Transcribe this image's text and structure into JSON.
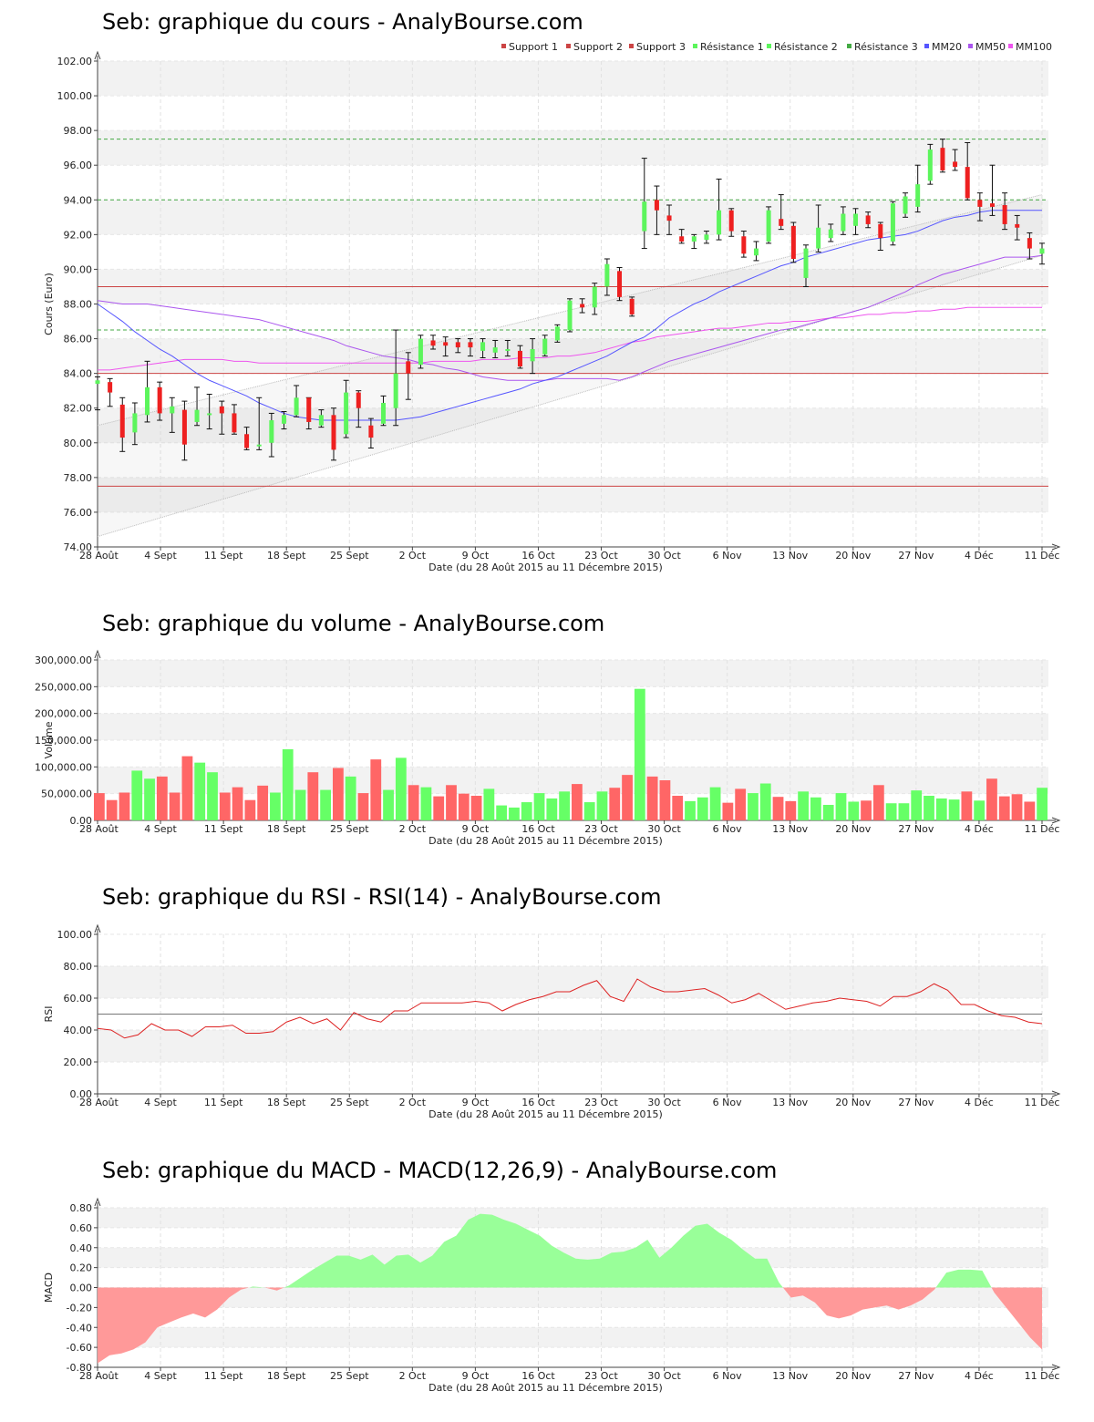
{
  "colors": {
    "up": "#5cf55c",
    "down": "#ee2020",
    "vol_up": "#66ff66",
    "vol_down": "#ff6666",
    "mm20": "#5555ff",
    "mm50": "#aa55ee",
    "mm100": "#ee55ee",
    "support": "#cc4444",
    "resistance": "#44aa44",
    "rsi": "#dd2222",
    "macd_pos": "#99ff99",
    "macd_neg": "#ff9999"
  },
  "x_ticks": [
    "28 Août",
    "4 Sept",
    "11 Sept",
    "18 Sept",
    "25 Sept",
    "2 Oct",
    "9 Oct",
    "16 Oct",
    "23 Oct",
    "30 Oct",
    "6 Nov",
    "13 Nov",
    "20 Nov",
    "27 Nov",
    "4 Déc",
    "11 Déc"
  ],
  "x_label": "Date (du 28 Août 2015 au 11 Décembre 2015)",
  "chart_data": [
    {
      "type": "candlestick",
      "title": "Seb: graphique du cours - AnalyBourse.com",
      "ylabel": "Cours (Euro)",
      "ylim": [
        74,
        102
      ],
      "yticks": [
        "74.00",
        "76.00",
        "78.00",
        "80.00",
        "82.00",
        "84.00",
        "86.00",
        "88.00",
        "90.00",
        "92.00",
        "94.00",
        "96.00",
        "98.00",
        "100.00",
        "102.00"
      ],
      "legend": [
        "Support 1",
        "Support 2",
        "Support 3",
        "Résistance 1",
        "Résistance 2",
        "Résistance 3",
        "MM20",
        "MM50",
        "MM100"
      ],
      "support_levels": [
        77.5,
        84.0,
        89.0
      ],
      "resistance_levels": [
        86.5,
        94.0,
        97.5
      ],
      "candles": [
        {
          "open": 83.4,
          "close": 83.6,
          "high": 83.8,
          "low": 81.9
        },
        {
          "open": 83.5,
          "close": 82.9,
          "high": 83.7,
          "low": 82.1
        },
        {
          "open": 82.2,
          "close": 80.3,
          "high": 82.6,
          "low": 79.5
        },
        {
          "open": 80.6,
          "close": 81.7,
          "high": 82.3,
          "low": 79.9
        },
        {
          "open": 81.6,
          "close": 83.2,
          "high": 84.7,
          "low": 81.2
        },
        {
          "open": 83.2,
          "close": 81.7,
          "high": 83.5,
          "low": 81.3
        },
        {
          "open": 81.7,
          "close": 82.1,
          "high": 82.6,
          "low": 80.6
        },
        {
          "open": 81.9,
          "close": 79.9,
          "high": 82.4,
          "low": 79.0
        },
        {
          "open": 81.2,
          "close": 81.9,
          "high": 83.2,
          "low": 81.0
        },
        {
          "open": 81.6,
          "close": 81.7,
          "high": 82.8,
          "low": 80.8
        },
        {
          "open": 82.1,
          "close": 81.7,
          "high": 82.4,
          "low": 80.5
        },
        {
          "open": 81.7,
          "close": 80.6,
          "high": 82.2,
          "low": 80.5
        },
        {
          "open": 80.5,
          "close": 79.7,
          "high": 80.9,
          "low": 79.6
        },
        {
          "open": 79.9,
          "close": 79.9,
          "high": 82.6,
          "low": 79.6
        },
        {
          "open": 80.0,
          "close": 81.3,
          "high": 81.7,
          "low": 79.2
        },
        {
          "open": 81.1,
          "close": 81.6,
          "high": 81.8,
          "low": 80.8
        },
        {
          "open": 81.6,
          "close": 82.6,
          "high": 83.3,
          "low": 81.5
        },
        {
          "open": 82.6,
          "close": 81.2,
          "high": 82.6,
          "low": 80.8
        },
        {
          "open": 81.0,
          "close": 81.6,
          "high": 81.9,
          "low": 80.9
        },
        {
          "open": 81.6,
          "close": 79.6,
          "high": 82.0,
          "low": 79.0
        },
        {
          "open": 80.5,
          "close": 82.9,
          "high": 83.6,
          "low": 80.3
        },
        {
          "open": 82.9,
          "close": 82.0,
          "high": 83.0,
          "low": 80.9
        },
        {
          "open": 81.0,
          "close": 80.3,
          "high": 81.4,
          "low": 79.7
        },
        {
          "open": 81.1,
          "close": 82.3,
          "high": 82.7,
          "low": 81.0
        },
        {
          "open": 82.0,
          "close": 84.0,
          "high": 86.5,
          "low": 81.0
        },
        {
          "open": 84.7,
          "close": 84.0,
          "high": 85.2,
          "low": 82.5
        },
        {
          "open": 84.5,
          "close": 86.0,
          "high": 86.2,
          "low": 84.3
        },
        {
          "open": 85.9,
          "close": 85.6,
          "high": 86.2,
          "low": 85.4
        },
        {
          "open": 85.8,
          "close": 85.6,
          "high": 86.1,
          "low": 85.0
        },
        {
          "open": 85.8,
          "close": 85.5,
          "high": 86.0,
          "low": 85.2
        },
        {
          "open": 85.8,
          "close": 85.5,
          "high": 86.0,
          "low": 85.0
        },
        {
          "open": 85.3,
          "close": 85.8,
          "high": 86.0,
          "low": 84.9
        },
        {
          "open": 85.2,
          "close": 85.5,
          "high": 85.9,
          "low": 84.9
        },
        {
          "open": 85.3,
          "close": 85.4,
          "high": 85.9,
          "low": 85.0
        },
        {
          "open": 85.3,
          "close": 84.4,
          "high": 85.6,
          "low": 84.3
        },
        {
          "open": 84.7,
          "close": 85.4,
          "high": 86.0,
          "low": 84.0
        },
        {
          "open": 85.1,
          "close": 86.0,
          "high": 86.2,
          "low": 85.0
        },
        {
          "open": 85.9,
          "close": 86.7,
          "high": 86.8,
          "low": 85.8
        },
        {
          "open": 86.5,
          "close": 88.2,
          "high": 88.3,
          "low": 86.4
        },
        {
          "open": 88.0,
          "close": 87.8,
          "high": 88.3,
          "low": 87.5
        },
        {
          "open": 87.8,
          "close": 89.0,
          "high": 89.2,
          "low": 87.4
        },
        {
          "open": 89.0,
          "close": 90.3,
          "high": 90.6,
          "low": 88.5
        },
        {
          "open": 89.9,
          "close": 88.4,
          "high": 90.1,
          "low": 88.2
        },
        {
          "open": 88.3,
          "close": 87.4,
          "high": 88.4,
          "low": 87.3
        },
        {
          "open": 92.2,
          "close": 93.9,
          "high": 96.4,
          "low": 91.2
        },
        {
          "open": 94.0,
          "close": 93.4,
          "high": 94.8,
          "low": 92.0
        },
        {
          "open": 93.1,
          "close": 92.8,
          "high": 93.7,
          "low": 92.0
        },
        {
          "open": 91.9,
          "close": 91.6,
          "high": 92.3,
          "low": 91.5
        },
        {
          "open": 91.6,
          "close": 91.9,
          "high": 92.0,
          "low": 91.2
        },
        {
          "open": 91.7,
          "close": 92.0,
          "high": 92.2,
          "low": 91.5
        },
        {
          "open": 92.0,
          "close": 93.4,
          "high": 95.2,
          "low": 91.7
        },
        {
          "open": 93.4,
          "close": 92.2,
          "high": 93.5,
          "low": 91.9
        },
        {
          "open": 91.9,
          "close": 90.9,
          "high": 92.2,
          "low": 90.7
        },
        {
          "open": 90.8,
          "close": 91.2,
          "high": 91.6,
          "low": 90.5
        },
        {
          "open": 91.6,
          "close": 93.4,
          "high": 93.6,
          "low": 91.5
        },
        {
          "open": 92.9,
          "close": 92.5,
          "high": 94.3,
          "low": 92.3
        },
        {
          "open": 92.5,
          "close": 90.6,
          "high": 92.7,
          "low": 90.4
        },
        {
          "open": 89.5,
          "close": 91.2,
          "high": 91.4,
          "low": 89.0
        },
        {
          "open": 91.2,
          "close": 92.4,
          "high": 93.7,
          "low": 91.0
        },
        {
          "open": 91.8,
          "close": 92.3,
          "high": 92.6,
          "low": 91.6
        },
        {
          "open": 92.2,
          "close": 93.2,
          "high": 93.6,
          "low": 92.0
        },
        {
          "open": 92.5,
          "close": 93.2,
          "high": 93.5,
          "low": 92.0
        },
        {
          "open": 93.1,
          "close": 92.6,
          "high": 93.3,
          "low": 92.4
        },
        {
          "open": 92.6,
          "close": 91.8,
          "high": 92.7,
          "low": 91.1
        },
        {
          "open": 91.6,
          "close": 93.8,
          "high": 93.9,
          "low": 91.4
        },
        {
          "open": 93.2,
          "close": 94.2,
          "high": 94.4,
          "low": 93.0
        },
        {
          "open": 93.6,
          "close": 94.9,
          "high": 96.0,
          "low": 93.3
        },
        {
          "open": 95.1,
          "close": 96.9,
          "high": 97.2,
          "low": 94.9
        },
        {
          "open": 97.0,
          "close": 95.7,
          "high": 97.5,
          "low": 95.6
        },
        {
          "open": 96.2,
          "close": 95.9,
          "high": 96.9,
          "low": 95.7
        },
        {
          "open": 95.9,
          "close": 94.1,
          "high": 97.3,
          "low": 94.0
        },
        {
          "open": 94.0,
          "close": 93.6,
          "high": 94.4,
          "low": 92.8
        },
        {
          "open": 93.8,
          "close": 93.6,
          "high": 96.0,
          "low": 93.1
        },
        {
          "open": 93.7,
          "close": 92.6,
          "high": 94.4,
          "low": 92.3
        },
        {
          "open": 92.6,
          "close": 92.4,
          "high": 93.1,
          "low": 91.7
        },
        {
          "open": 91.8,
          "close": 91.2,
          "high": 92.1,
          "low": 90.6
        },
        {
          "open": 90.9,
          "close": 91.2,
          "high": 91.5,
          "low": 90.3
        }
      ],
      "mm20": [
        88.0,
        87.5,
        87.0,
        86.4,
        85.9,
        85.4,
        85.0,
        84.5,
        84.0,
        83.6,
        83.3,
        83.0,
        82.7,
        82.3,
        82.0,
        81.7,
        81.5,
        81.4,
        81.3,
        81.3,
        81.3,
        81.3,
        81.3,
        81.3,
        81.3,
        81.4,
        81.5,
        81.7,
        81.9,
        82.1,
        82.3,
        82.5,
        82.7,
        82.9,
        83.1,
        83.4,
        83.6,
        83.8,
        84.1,
        84.4,
        84.7,
        85.0,
        85.4,
        85.8,
        86.1,
        86.6,
        87.2,
        87.6,
        88.0,
        88.3,
        88.7,
        89.0,
        89.3,
        89.6,
        89.9,
        90.2,
        90.4,
        90.7,
        90.9,
        91.1,
        91.3,
        91.5,
        91.7,
        91.8,
        91.9,
        92.0,
        92.2,
        92.5,
        92.8,
        93.0,
        93.1,
        93.3,
        93.4,
        93.4,
        93.4,
        93.4,
        93.4
      ],
      "mm50": [
        88.2,
        88.1,
        88.0,
        88.0,
        88.0,
        87.9,
        87.8,
        87.7,
        87.6,
        87.5,
        87.4,
        87.3,
        87.2,
        87.1,
        86.9,
        86.7,
        86.5,
        86.3,
        86.1,
        85.9,
        85.6,
        85.4,
        85.2,
        85.0,
        84.9,
        84.8,
        84.6,
        84.5,
        84.3,
        84.2,
        84.0,
        83.8,
        83.7,
        83.6,
        83.6,
        83.6,
        83.6,
        83.7,
        83.7,
        83.7,
        83.7,
        83.7,
        83.6,
        83.8,
        84.1,
        84.4,
        84.7,
        84.9,
        85.1,
        85.3,
        85.5,
        85.7,
        85.9,
        86.1,
        86.3,
        86.5,
        86.6,
        86.8,
        87.0,
        87.2,
        87.4,
        87.6,
        87.8,
        88.1,
        88.4,
        88.7,
        89.1,
        89.4,
        89.7,
        89.9,
        90.1,
        90.3,
        90.5,
        90.7,
        90.7,
        90.7,
        90.8
      ],
      "mm100": [
        84.2,
        84.2,
        84.3,
        84.4,
        84.5,
        84.6,
        84.7,
        84.8,
        84.8,
        84.8,
        84.8,
        84.7,
        84.7,
        84.6,
        84.6,
        84.6,
        84.6,
        84.6,
        84.6,
        84.6,
        84.6,
        84.6,
        84.6,
        84.6,
        84.6,
        84.6,
        84.6,
        84.7,
        84.7,
        84.7,
        84.7,
        84.8,
        84.8,
        84.8,
        84.9,
        84.9,
        84.9,
        85.0,
        85.0,
        85.1,
        85.2,
        85.4,
        85.6,
        85.8,
        85.9,
        86.1,
        86.2,
        86.3,
        86.4,
        86.5,
        86.6,
        86.6,
        86.7,
        86.8,
        86.9,
        86.9,
        87.0,
        87.0,
        87.1,
        87.2,
        87.2,
        87.3,
        87.4,
        87.4,
        87.5,
        87.5,
        87.6,
        87.6,
        87.7,
        87.7,
        87.8,
        87.8,
        87.8,
        87.8,
        87.8,
        87.8,
        87.8
      ]
    },
    {
      "type": "bar",
      "title": "Seb: graphique du volume - AnalyBourse.com",
      "ylabel": "Volume",
      "ylim": [
        0,
        300000
      ],
      "yticks": [
        "0.00",
        "50,000.00",
        "100,000.00",
        "150,000.00",
        "200,000.00",
        "250,000.00",
        "300,000.00"
      ],
      "values": [
        51000,
        38000,
        52000,
        93000,
        78000,
        82000,
        52000,
        120000,
        108000,
        90000,
        52000,
        62000,
        38000,
        65000,
        52000,
        133000,
        57000,
        90000,
        57000,
        98000,
        82000,
        51000,
        114000,
        57000,
        117000,
        66000,
        62000,
        45000,
        66000,
        50000,
        46000,
        59000,
        28000,
        24000,
        34000,
        51000,
        41000,
        54000,
        68000,
        34000,
        54000,
        61000,
        85000,
        246000,
        82000,
        75000,
        46000,
        36000,
        43000,
        62000,
        33000,
        59000,
        51000,
        69000,
        44000,
        36000,
        54000,
        43000,
        29000,
        51000,
        35000,
        37000,
        66000,
        32000,
        32000,
        56000,
        46000,
        41000,
        39000,
        54000,
        37000,
        78000,
        45000,
        49000,
        35000,
        61000
      ],
      "up": [
        false,
        false,
        false,
        true,
        true,
        false,
        false,
        false,
        true,
        true,
        false,
        false,
        false,
        false,
        true,
        true,
        true,
        false,
        true,
        false,
        true,
        false,
        false,
        true,
        true,
        false,
        true,
        false,
        false,
        false,
        false,
        true,
        true,
        true,
        true,
        true,
        true,
        true,
        false,
        true,
        true,
        false,
        false,
        true,
        false,
        false,
        false,
        true,
        true,
        true,
        false,
        false,
        true,
        true,
        false,
        false,
        true,
        true,
        true,
        true,
        true,
        false,
        false,
        true,
        true,
        true,
        true,
        true,
        true,
        false,
        true,
        false,
        false,
        false,
        false,
        true
      ]
    },
    {
      "type": "line",
      "title": "Seb: graphique du RSI - RSI(14) - AnalyBourse.com",
      "ylabel": "RSI",
      "ylim": [
        0,
        100
      ],
      "yticks": [
        "0.00",
        "20.00",
        "40.00",
        "60.00",
        "80.00",
        "100.00"
      ],
      "reference": 50,
      "values": [
        41,
        40,
        35,
        37,
        44,
        40,
        40,
        36,
        42,
        42,
        43,
        38,
        38,
        39,
        45,
        48,
        44,
        47,
        40,
        51,
        47,
        45,
        52,
        52,
        57,
        57,
        57,
        57,
        58,
        57,
        52,
        56,
        59,
        61,
        64,
        64,
        68,
        71,
        61,
        58,
        72,
        67,
        64,
        64,
        65,
        66,
        62,
        57,
        59,
        63,
        58,
        53,
        55,
        57,
        58,
        60,
        59,
        58,
        55,
        61,
        61,
        64,
        69,
        65,
        56,
        56,
        52,
        49,
        48,
        45,
        44
      ]
    },
    {
      "type": "area",
      "title": "Seb: graphique du MACD - MACD(12,26,9) - AnalyBourse.com",
      "ylabel": "MACD",
      "ylim": [
        -0.8,
        0.8
      ],
      "yticks": [
        "-0.80",
        "-0.60",
        "-0.40",
        "-0.20",
        "0.00",
        "0.20",
        "0.40",
        "0.60",
        "0.80"
      ],
      "values": [
        -0.76,
        -0.68,
        -0.66,
        -0.62,
        -0.55,
        -0.4,
        -0.35,
        -0.3,
        -0.26,
        -0.3,
        -0.22,
        -0.1,
        -0.02,
        0.01,
        0.0,
        -0.03,
        0.02,
        0.1,
        0.18,
        0.25,
        0.32,
        0.32,
        0.28,
        0.33,
        0.23,
        0.32,
        0.33,
        0.25,
        0.32,
        0.46,
        0.52,
        0.68,
        0.74,
        0.73,
        0.68,
        0.64,
        0.58,
        0.52,
        0.42,
        0.35,
        0.29,
        0.28,
        0.29,
        0.35,
        0.36,
        0.4,
        0.48,
        0.3,
        0.4,
        0.52,
        0.62,
        0.64,
        0.55,
        0.48,
        0.38,
        0.29,
        0.29,
        0.05,
        -0.1,
        -0.08,
        -0.15,
        -0.28,
        -0.31,
        -0.28,
        -0.22,
        -0.2,
        -0.18,
        -0.22,
        -0.18,
        -0.12,
        -0.02,
        0.15,
        0.18,
        0.18,
        0.17,
        -0.05,
        -0.2,
        -0.35,
        -0.5,
        -0.62
      ]
    }
  ]
}
